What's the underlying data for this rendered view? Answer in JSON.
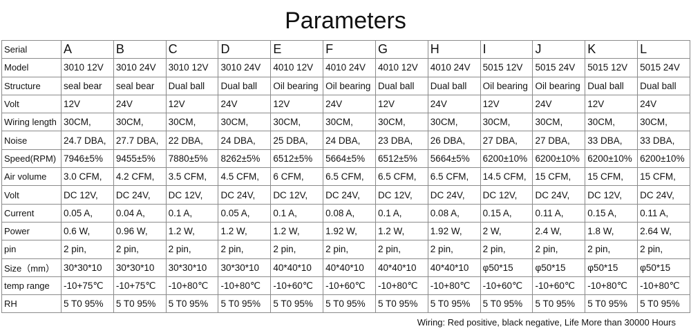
{
  "header": {
    "title": "Parameters"
  },
  "table": {
    "rows": [
      [
        "Serial",
        "A",
        "B",
        "C",
        "D",
        "E",
        "F",
        "G",
        "H",
        "I",
        "J",
        "K",
        "L"
      ],
      [
        "Model",
        "3010 12V",
        "3010 24V",
        "3010 12V",
        "3010 24V",
        "4010 12V",
        "4010 24V",
        "4010 12V",
        "4010 24V",
        "5015 12V",
        "5015 24V",
        "5015 12V",
        "5015 24V"
      ],
      [
        "Structure",
        "seal bear",
        "seal bear",
        "Dual ball",
        "Dual ball",
        "Oil bearing",
        "Oil bearing",
        "Dual ball",
        "Dual ball",
        "Oil bearing",
        "Oil bearing",
        "Dual ball",
        "Dual ball"
      ],
      [
        "Volt",
        "12V",
        "24V",
        "12V",
        "24V",
        "12V",
        "24V",
        "12V",
        "24V",
        "12V",
        "24V",
        "12V",
        "24V"
      ],
      [
        "Wiring length",
        "30CM,",
        "30CM,",
        "30CM,",
        "30CM,",
        "30CM,",
        "30CM,",
        "30CM,",
        "30CM,",
        "30CM,",
        "30CM,",
        "30CM,",
        "30CM,"
      ],
      [
        "Noise",
        "24.7 DBA,",
        "27.7 DBA,",
        "22 DBA,",
        "24 DBA,",
        "25 DBA,",
        "24 DBA,",
        "23 DBA,",
        "26 DBA,",
        "27 DBA,",
        "27 DBA,",
        "33 DBA,",
        "33 DBA,"
      ],
      [
        "Speed(RPM)",
        "7946±5%",
        "9455±5%",
        "7880±5%",
        "8262±5%",
        "6512±5%",
        "5664±5%",
        "6512±5%",
        "5664±5%",
        "6200±10%",
        "6200±10%",
        "6200±10%",
        "6200±10%"
      ],
      [
        "Air volume",
        "3.0 CFM,",
        "4.2 CFM,",
        "3.5 CFM,",
        "4.5 CFM,",
        "6 CFM,",
        "6.5 CFM,",
        "6.5 CFM,",
        "6.5 CFM,",
        "14.5 CFM,",
        "15 CFM,",
        "15 CFM,",
        "15 CFM,"
      ],
      [
        "Volt",
        "DC 12V,",
        "DC 24V,",
        "DC 12V,",
        "DC 24V,",
        "DC 12V,",
        "DC 24V,",
        "DC 12V,",
        "DC 24V,",
        "DC 12V,",
        "DC 24V,",
        "DC 12V,",
        "DC 24V,"
      ],
      [
        "Current",
        "0.05 A,",
        "0.04 A,",
        "0.1 A,",
        "0.05 A,",
        "0.1 A,",
        "0.08 A,",
        "0.1 A,",
        "0.08 A,",
        "0.15 A,",
        "0.11 A,",
        "0.15 A,",
        "0.11 A,"
      ],
      [
        "Power",
        "0.6 W,",
        "0.96 W,",
        "1.2 W,",
        "1.2 W,",
        "1.2 W,",
        "1.92 W,",
        "1.2 W,",
        "1.92 W,",
        "2 W,",
        "2.4 W,",
        "1.8 W,",
        "2.64 W,"
      ],
      [
        "pin",
        "2 pin,",
        "2 pin,",
        "2 pin,",
        "2 pin,",
        "2 pin,",
        "2 pin,",
        "2 pin,",
        "2 pin,",
        "2 pin,",
        "2 pin,",
        "2 pin,",
        "2 pin,"
      ],
      [
        "Size（mm）",
        "30*30*10",
        "30*30*10",
        "30*30*10",
        "30*30*10",
        "40*40*10",
        "40*40*10",
        "40*40*10",
        "40*40*10",
        "φ50*15",
        "φ50*15",
        "φ50*15",
        "φ50*15"
      ],
      [
        "temp range",
        "-10+75℃",
        "-10+75℃",
        "-10+80℃",
        "-10+80℃",
        "-10+60℃",
        "-10+60℃",
        "-10+80℃",
        "-10+80℃",
        "-10+60℃",
        "-10+60℃",
        "-10+80℃",
        "-10+80℃"
      ],
      [
        "RH",
        "5 T0 95%",
        "5 T0 95%",
        "5 T0 95%",
        "5 T0 95%",
        "5 T0 95%",
        "5 T0 95%",
        "5 T0 95%",
        "5 T0 95%",
        "5 T0 95%",
        "5 T0 95%",
        "5 T0 95%",
        "5 T0 95%"
      ]
    ]
  },
  "footer": {
    "note": "Wiring: Red positive, black negative, Life More than 30000 Hours"
  }
}
